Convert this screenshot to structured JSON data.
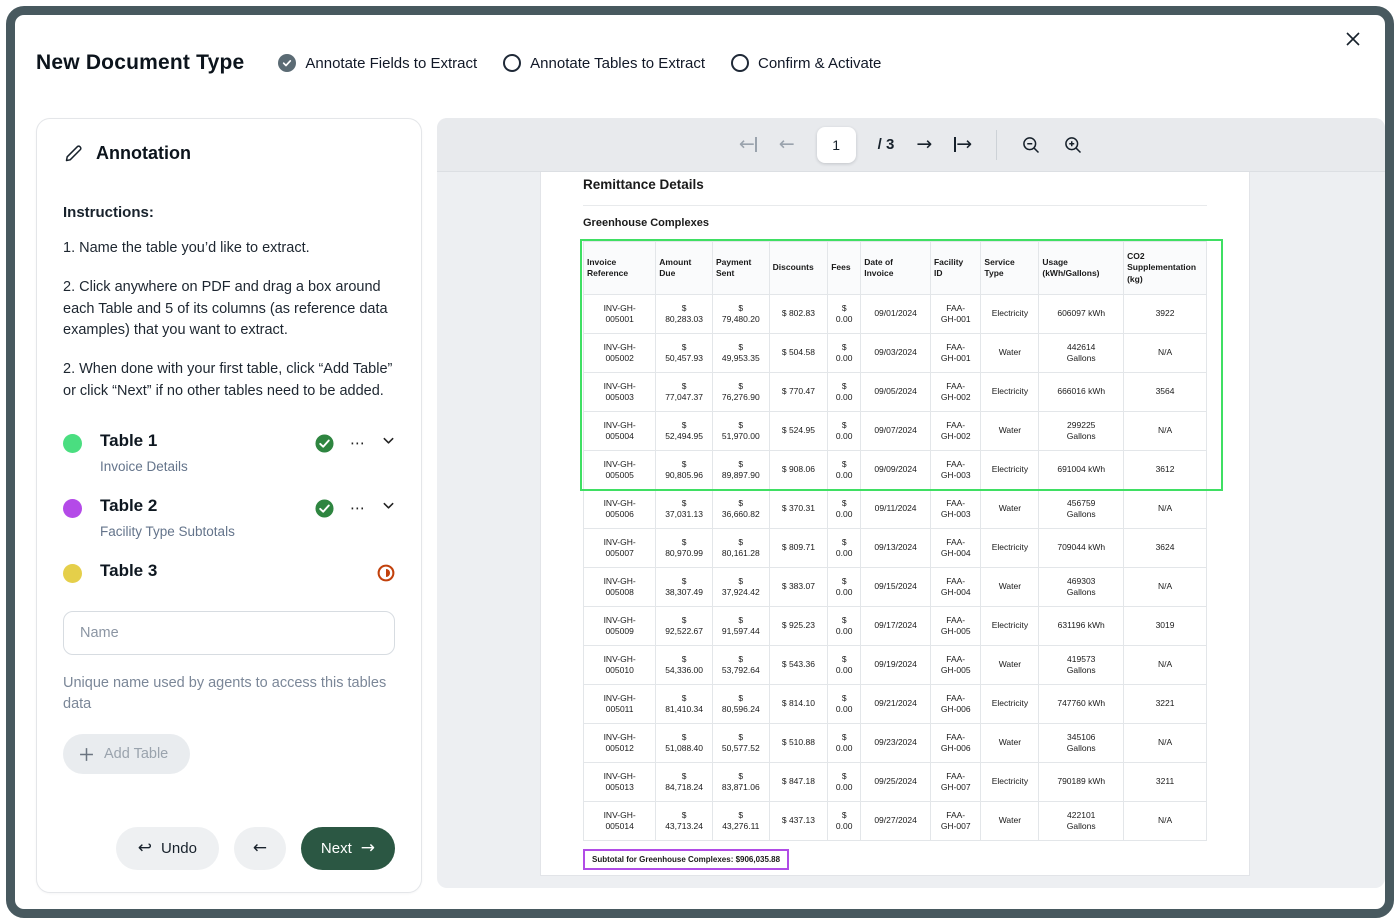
{
  "modal": {
    "title": "New Document Type",
    "steps": [
      {
        "label": "Annotate Fields to Extract",
        "state": "complete"
      },
      {
        "label": "Annotate Tables to Extract",
        "state": "pending"
      },
      {
        "label": "Confirm & Activate",
        "state": "pending"
      }
    ]
  },
  "sidebar": {
    "title": "Annotation",
    "instructions_heading": "Instructions:",
    "instructions": [
      "1. Name the table you’d like to extract.",
      "2. Click anywhere on PDF and drag a box around each Table and 5 of its columns (as reference data examples) that you want to extract.",
      "2. When done with your first table, click “Add Table” or click “Next” if no other tables need to be added."
    ],
    "tables": [
      {
        "name": "Table 1",
        "subtitle": "Invoice Details",
        "dot_color": "#4ade80",
        "status": "complete"
      },
      {
        "name": "Table 2",
        "subtitle": "Facility Type Subtotals",
        "dot_color": "#b44ae8",
        "status": "complete"
      },
      {
        "name": "Table 3",
        "subtitle": "",
        "dot_color": "#e5cf4a",
        "status": "in-progress"
      }
    ],
    "name_input": {
      "value": "",
      "placeholder": "Name"
    },
    "helper_text": "Unique name used by agents to access this tables data",
    "add_table_label": "Add Table",
    "undo_label": "Undo",
    "next_label": "Next"
  },
  "viewer": {
    "toolbar": {
      "page": "1",
      "total_label": "/ 3"
    },
    "document": {
      "title": "Remittance Details",
      "section": "Greenhouse Complexes",
      "subtotal": "Subtotal for Greenhouse Complexes: $906,035.88"
    }
  },
  "pdf_table": {
    "headers": [
      "Invoice\nReference",
      "Amount\nDue",
      "Payment\nSent",
      "Discounts",
      "Fees",
      "Date of\nInvoice",
      "Facility\nID",
      "Service\nType",
      "Usage\n(kWh/Gallons)",
      "CO2\nSupplementation\n(kg)"
    ],
    "rows": [
      [
        "INV-GH-\n005001",
        "$\n80,283.03",
        "$\n79,480.20",
        "$ 802.83",
        "$\n0.00",
        "09/01/2024",
        "FAA-\nGH-001",
        "Electricity",
        "606097 kWh",
        "3922"
      ],
      [
        "INV-GH-\n005002",
        "$\n50,457.93",
        "$\n49,953.35",
        "$ 504.58",
        "$\n0.00",
        "09/03/2024",
        "FAA-\nGH-001",
        "Water",
        "442614\nGallons",
        "N/A"
      ],
      [
        "INV-GH-\n005003",
        "$\n77,047.37",
        "$\n76,276.90",
        "$ 770.47",
        "$\n0.00",
        "09/05/2024",
        "FAA-\nGH-002",
        "Electricity",
        "666016 kWh",
        "3564"
      ],
      [
        "INV-GH-\n005004",
        "$\n52,494.95",
        "$\n51,970.00",
        "$ 524.95",
        "$\n0.00",
        "09/07/2024",
        "FAA-\nGH-002",
        "Water",
        "299225\nGallons",
        "N/A"
      ],
      [
        "INV-GH-\n005005",
        "$\n90,805.96",
        "$\n89,897.90",
        "$ 908.06",
        "$\n0.00",
        "09/09/2024",
        "FAA-\nGH-003",
        "Electricity",
        "691004 kWh",
        "3612"
      ],
      [
        "INV-GH-\n005006",
        "$\n37,031.13",
        "$\n36,660.82",
        "$ 370.31",
        "$\n0.00",
        "09/11/2024",
        "FAA-\nGH-003",
        "Water",
        "456759\nGallons",
        "N/A"
      ],
      [
        "INV-GH-\n005007",
        "$\n80,970.99",
        "$\n80,161.28",
        "$ 809.71",
        "$\n0.00",
        "09/13/2024",
        "FAA-\nGH-004",
        "Electricity",
        "709044 kWh",
        "3624"
      ],
      [
        "INV-GH-\n005008",
        "$\n38,307.49",
        "$\n37,924.42",
        "$ 383.07",
        "$\n0.00",
        "09/15/2024",
        "FAA-\nGH-004",
        "Water",
        "469303\nGallons",
        "N/A"
      ],
      [
        "INV-GH-\n005009",
        "$\n92,522.67",
        "$\n91,597.44",
        "$ 925.23",
        "$\n0.00",
        "09/17/2024",
        "FAA-\nGH-005",
        "Electricity",
        "631196 kWh",
        "3019"
      ],
      [
        "INV-GH-\n005010",
        "$\n54,336.00",
        "$\n53,792.64",
        "$ 543.36",
        "$\n0.00",
        "09/19/2024",
        "FAA-\nGH-005",
        "Water",
        "419573\nGallons",
        "N/A"
      ],
      [
        "INV-GH-\n005011",
        "$\n81,410.34",
        "$\n80,596.24",
        "$ 814.10",
        "$\n0.00",
        "09/21/2024",
        "FAA-\nGH-006",
        "Electricity",
        "747760 kWh",
        "3221"
      ],
      [
        "INV-GH-\n005012",
        "$\n51,088.40",
        "$\n50,577.52",
        "$ 510.88",
        "$\n0.00",
        "09/23/2024",
        "FAA-\nGH-006",
        "Water",
        "345106\nGallons",
        "N/A"
      ],
      [
        "INV-GH-\n005013",
        "$\n84,718.24",
        "$\n83,871.06",
        "$ 847.18",
        "$\n0.00",
        "09/25/2024",
        "FAA-\nGH-007",
        "Electricity",
        "790189 kWh",
        "3211"
      ],
      [
        "INV-GH-\n005014",
        "$\n43,713.24",
        "$\n43,276.11",
        "$ 437.13",
        "$\n0.00",
        "09/27/2024",
        "FAA-\nGH-007",
        "Water",
        "422101\nGallons",
        "N/A"
      ]
    ]
  },
  "colors": {
    "annotation_green": "#3fdf63",
    "annotation_purple": "#b14ce6",
    "check_green": "#2e8540",
    "in_progress_orange": "#c2410c",
    "next_button_green": "#2b5743",
    "frame_border": "#48595f"
  }
}
